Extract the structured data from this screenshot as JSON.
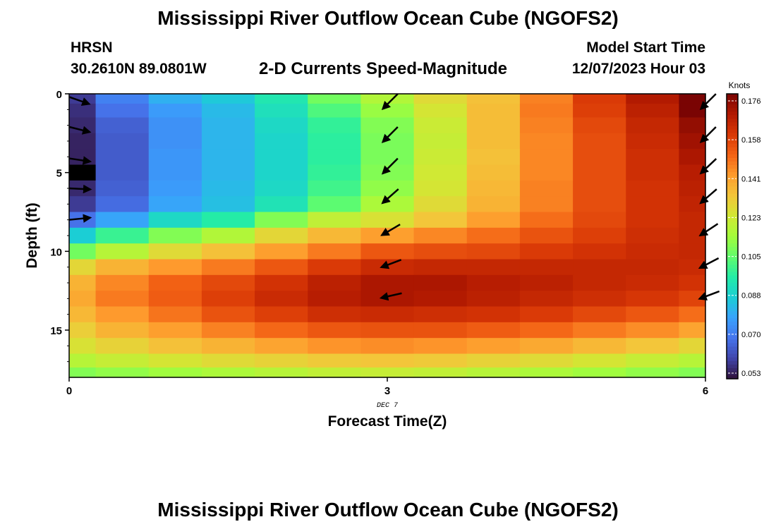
{
  "header": {
    "title": "Mississippi River Outflow Ocean Cube (NGOFS2)",
    "station_name": "HRSN",
    "station_coords": "30.2610N  89.0801W",
    "subtitle": "2-D Currents Speed-Magnitude",
    "model_start_label": "Model Start Time",
    "model_start_value": "12/07/2023 Hour 03"
  },
  "footer": {
    "title": "Mississippi River Outflow Ocean Cube (NGOFS2)"
  },
  "chart_data": {
    "type": "heatmap",
    "xlabel": "Forecast Time(Z)",
    "ylabel": "Depth (ft)",
    "x_ticks": [
      "0",
      "3",
      "6"
    ],
    "x_sublabel": "DEC 7",
    "y_ticks": [
      "0",
      "5",
      "10",
      "15"
    ],
    "xlim": [
      0,
      6
    ],
    "ylim": [
      0,
      18
    ],
    "y_inverted": true,
    "colorbar": {
      "title": "Knots",
      "ticks": [
        "0.176",
        "0.158",
        "0.141",
        "0.123",
        "0.105",
        "0.088",
        "0.070",
        "0.053"
      ],
      "range": [
        0.053,
        0.176
      ]
    },
    "colorscale": [
      "#30123b",
      "#4145ab",
      "#4675ed",
      "#39a2fc",
      "#1bcfd4",
      "#24eca6",
      "#61fc6c",
      "#a4fc3b",
      "#d1e834",
      "#f3c63a",
      "#fe9b2d",
      "#f36315",
      "#d93806",
      "#b11901",
      "#7a0403"
    ],
    "x": [
      0,
      0.5,
      1,
      1.5,
      2,
      2.5,
      3,
      3.5,
      4,
      4.5,
      5,
      5.5,
      6
    ],
    "depth": [
      0.25,
      1,
      2,
      3,
      4,
      5,
      6,
      7,
      8,
      9,
      10,
      11,
      12,
      13,
      14,
      15,
      16,
      17,
      17.75
    ],
    "values": [
      [
        0.06,
        0.073,
        0.082,
        0.087,
        0.095,
        0.108,
        0.117,
        0.127,
        0.133,
        0.145,
        0.158,
        0.167,
        0.178
      ],
      [
        0.058,
        0.07,
        0.078,
        0.084,
        0.093,
        0.103,
        0.113,
        0.124,
        0.134,
        0.146,
        0.157,
        0.165,
        0.176
      ],
      [
        0.057,
        0.067,
        0.076,
        0.083,
        0.091,
        0.099,
        0.11,
        0.122,
        0.134,
        0.145,
        0.155,
        0.163,
        0.172
      ],
      [
        0.056,
        0.066,
        0.076,
        0.083,
        0.09,
        0.098,
        0.109,
        0.121,
        0.134,
        0.144,
        0.154,
        0.162,
        0.17
      ],
      [
        0.056,
        0.066,
        0.077,
        0.083,
        0.09,
        0.098,
        0.109,
        0.122,
        0.133,
        0.144,
        0.154,
        0.161,
        0.168
      ],
      [
        0.056,
        0.066,
        0.077,
        0.083,
        0.09,
        0.099,
        0.11,
        0.123,
        0.134,
        0.144,
        0.154,
        0.161,
        0.166
      ],
      [
        0.057,
        0.067,
        0.078,
        0.084,
        0.091,
        0.101,
        0.112,
        0.124,
        0.135,
        0.145,
        0.154,
        0.16,
        0.165
      ],
      [
        0.06,
        0.069,
        0.08,
        0.085,
        0.094,
        0.105,
        0.116,
        0.127,
        0.136,
        0.145,
        0.154,
        0.16,
        0.164
      ],
      [
        0.07,
        0.08,
        0.091,
        0.097,
        0.11,
        0.12,
        0.125,
        0.132,
        0.14,
        0.148,
        0.155,
        0.16,
        0.163
      ],
      [
        0.088,
        0.1,
        0.11,
        0.117,
        0.128,
        0.135,
        0.14,
        0.144,
        0.148,
        0.153,
        0.157,
        0.161,
        0.163
      ],
      [
        0.108,
        0.118,
        0.127,
        0.133,
        0.14,
        0.146,
        0.152,
        0.154,
        0.155,
        0.158,
        0.16,
        0.162,
        0.163
      ],
      [
        0.128,
        0.136,
        0.141,
        0.146,
        0.152,
        0.158,
        0.162,
        0.163,
        0.163,
        0.163,
        0.163,
        0.163,
        0.162
      ],
      [
        0.136,
        0.144,
        0.15,
        0.155,
        0.16,
        0.165,
        0.168,
        0.168,
        0.166,
        0.165,
        0.163,
        0.162,
        0.16
      ],
      [
        0.138,
        0.146,
        0.151,
        0.157,
        0.162,
        0.166,
        0.168,
        0.167,
        0.165,
        0.163,
        0.161,
        0.159,
        0.156
      ],
      [
        0.135,
        0.141,
        0.147,
        0.153,
        0.157,
        0.161,
        0.162,
        0.161,
        0.16,
        0.158,
        0.155,
        0.152,
        0.148
      ],
      [
        0.13,
        0.136,
        0.14,
        0.145,
        0.149,
        0.152,
        0.153,
        0.153,
        0.151,
        0.149,
        0.146,
        0.143,
        0.139
      ],
      [
        0.125,
        0.129,
        0.133,
        0.136,
        0.139,
        0.142,
        0.143,
        0.142,
        0.14,
        0.138,
        0.135,
        0.132,
        0.128
      ],
      [
        0.118,
        0.121,
        0.124,
        0.127,
        0.129,
        0.131,
        0.132,
        0.131,
        0.129,
        0.127,
        0.124,
        0.121,
        0.118
      ],
      [
        0.11,
        0.112,
        0.114,
        0.116,
        0.118,
        0.12,
        0.121,
        0.12,
        0.118,
        0.116,
        0.114,
        0.112,
        0.11
      ]
    ],
    "masked_cell": {
      "x": 0,
      "depth": 5
    },
    "vectors": [
      {
        "x": 0,
        "depth": 0.2,
        "dx": 1,
        "dy": 0.35
      },
      {
        "x": 0,
        "depth": 2.1,
        "dx": 1,
        "dy": 0.25
      },
      {
        "x": 0,
        "depth": 4.1,
        "dx": 1,
        "dy": 0.15
      },
      {
        "x": 0,
        "depth": 6.0,
        "dx": 1,
        "dy": 0.05
      },
      {
        "x": 0,
        "depth": 8.0,
        "dx": 1,
        "dy": -0.1
      },
      {
        "x": 3,
        "depth": 0.4,
        "dx": -0.7,
        "dy": 0.7
      },
      {
        "x": 3,
        "depth": 2.5,
        "dx": -0.7,
        "dy": 0.7
      },
      {
        "x": 3,
        "depth": 4.5,
        "dx": -0.7,
        "dy": 0.7
      },
      {
        "x": 3,
        "depth": 6.4,
        "dx": -0.75,
        "dy": 0.66
      },
      {
        "x": 3,
        "depth": 8.5,
        "dx": -0.85,
        "dy": 0.5
      },
      {
        "x": 3,
        "depth": 10.6,
        "dx": -0.93,
        "dy": 0.35
      },
      {
        "x": 3,
        "depth": 12.6,
        "dx": -0.97,
        "dy": 0.22
      },
      {
        "x": 6,
        "depth": 0.4,
        "dx": -0.7,
        "dy": 0.7
      },
      {
        "x": 6,
        "depth": 2.5,
        "dx": -0.7,
        "dy": 0.7
      },
      {
        "x": 6,
        "depth": 4.5,
        "dx": -0.72,
        "dy": 0.68
      },
      {
        "x": 6,
        "depth": 6.4,
        "dx": -0.75,
        "dy": 0.65
      },
      {
        "x": 6,
        "depth": 8.5,
        "dx": -0.83,
        "dy": 0.55
      },
      {
        "x": 6,
        "depth": 10.6,
        "dx": -0.88,
        "dy": 0.46
      },
      {
        "x": 6,
        "depth": 12.6,
        "dx": -0.93,
        "dy": 0.35
      }
    ]
  }
}
